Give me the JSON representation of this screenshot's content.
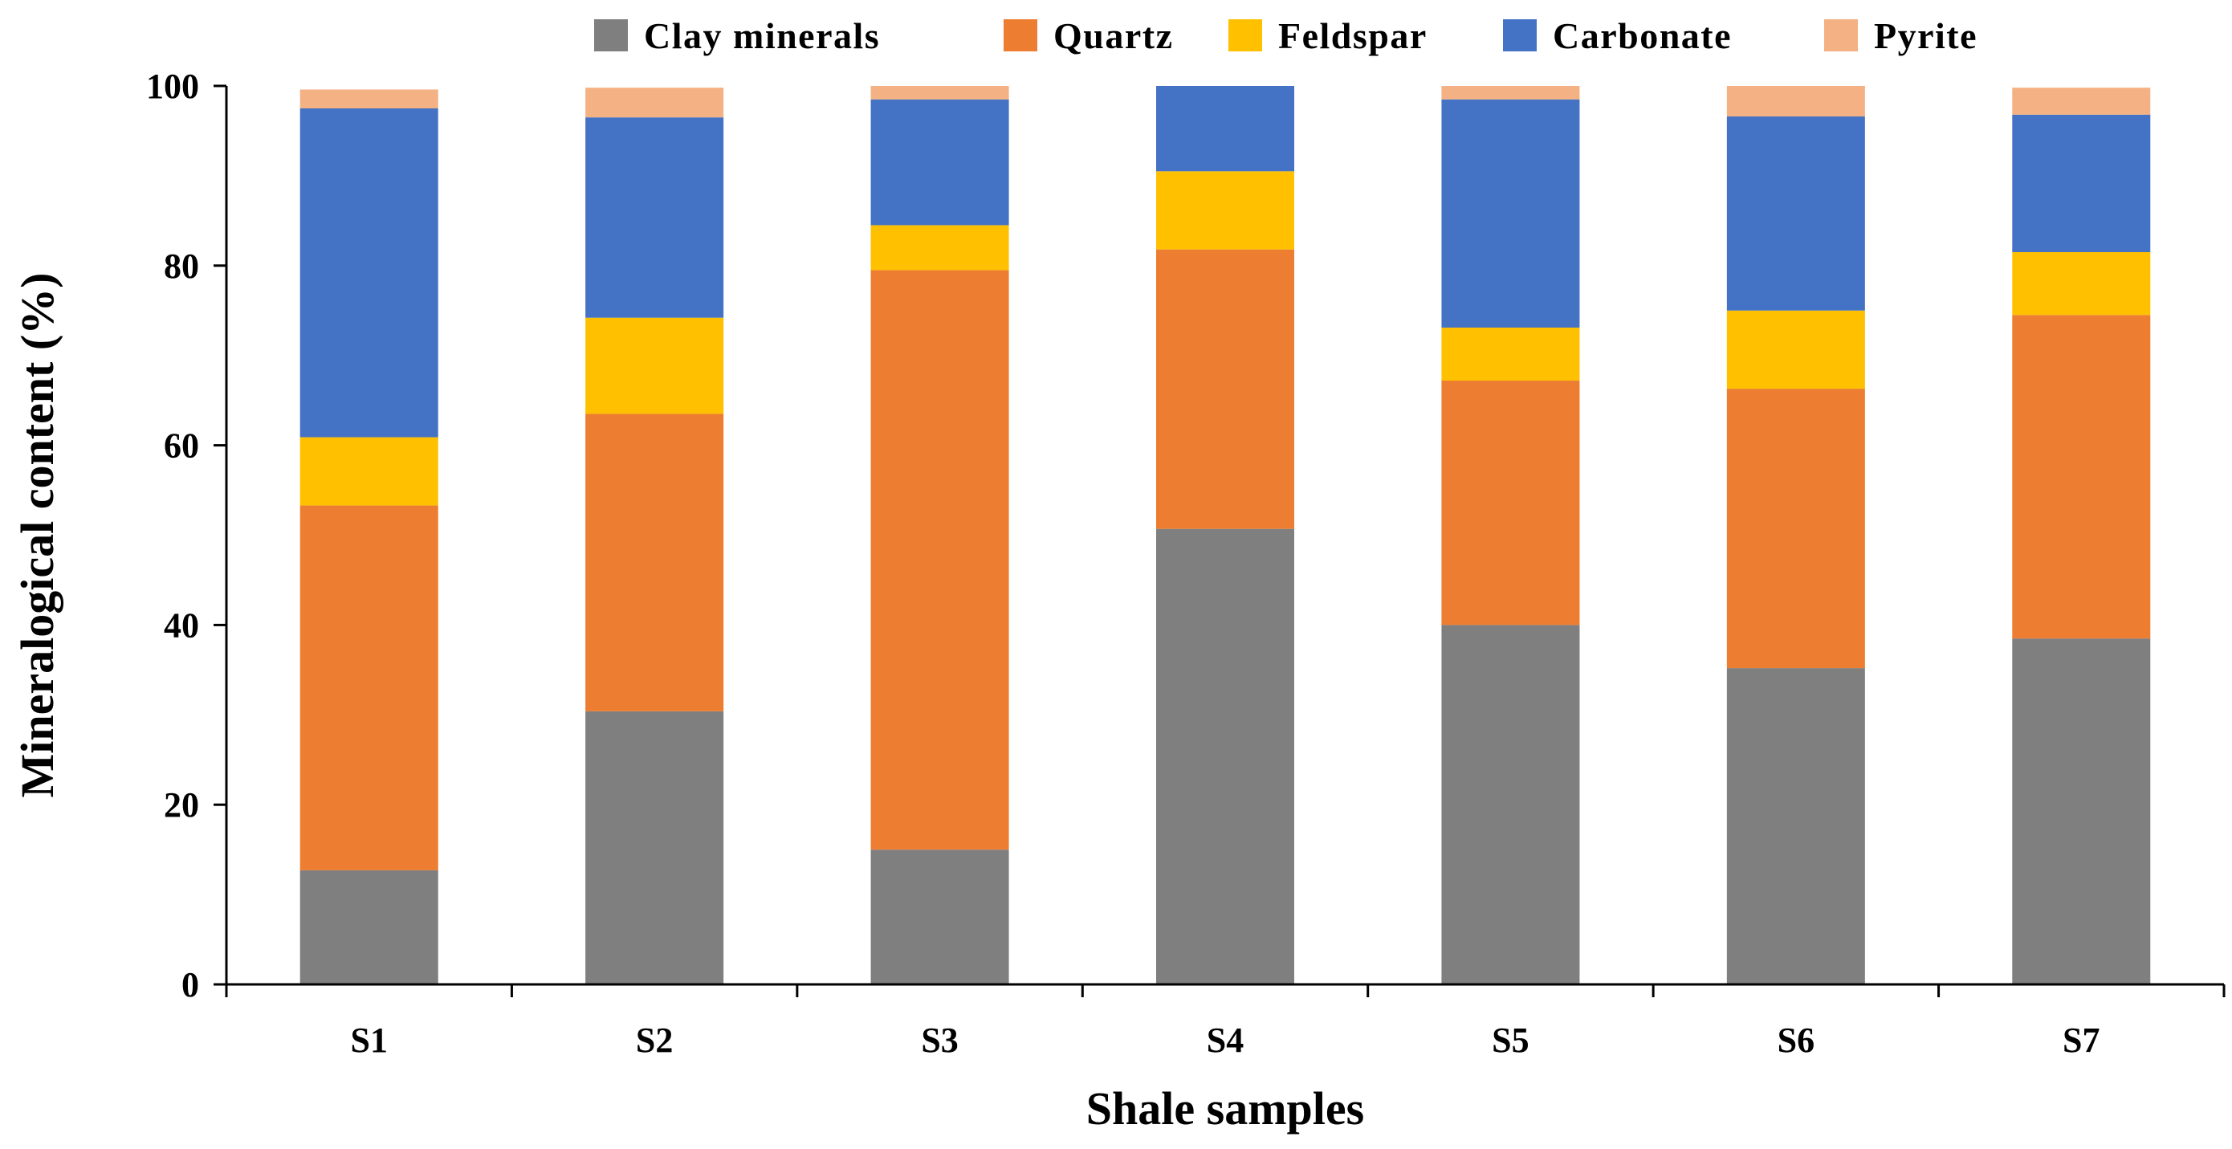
{
  "chart_data": {
    "type": "bar",
    "stacked": true,
    "categories": [
      "S1",
      "S2",
      "S3",
      "S4",
      "S5",
      "S6",
      "S7"
    ],
    "series": [
      {
        "name": "Clay minerals",
        "color": "#7f7f7f",
        "values": [
          12.7,
          30.4,
          15.0,
          50.7,
          40.0,
          35.2,
          38.5
        ]
      },
      {
        "name": "Quartz",
        "color": "#ed7d31",
        "values": [
          40.6,
          33.1,
          64.5,
          31.1,
          27.2,
          31.1,
          36.0
        ]
      },
      {
        "name": "Feldspar",
        "color": "#ffc000",
        "values": [
          7.6,
          10.7,
          5.0,
          8.7,
          5.9,
          8.7,
          7.0
        ]
      },
      {
        "name": "Carbonate",
        "color": "#4472c4",
        "values": [
          36.6,
          22.3,
          14.0,
          9.5,
          25.4,
          21.6,
          15.3
        ]
      },
      {
        "name": "Pyrite",
        "color": "#f4b183",
        "values": [
          2.1,
          3.3,
          1.5,
          0.0,
          1.5,
          3.4,
          3.0
        ]
      }
    ],
    "xlabel": "Shale samples",
    "ylabel": "Mineralogical content (%)",
    "ylim": [
      0,
      100
    ],
    "yticks": [
      0,
      20,
      40,
      60,
      80,
      100
    ],
    "grid": false,
    "legend_position": "top"
  }
}
